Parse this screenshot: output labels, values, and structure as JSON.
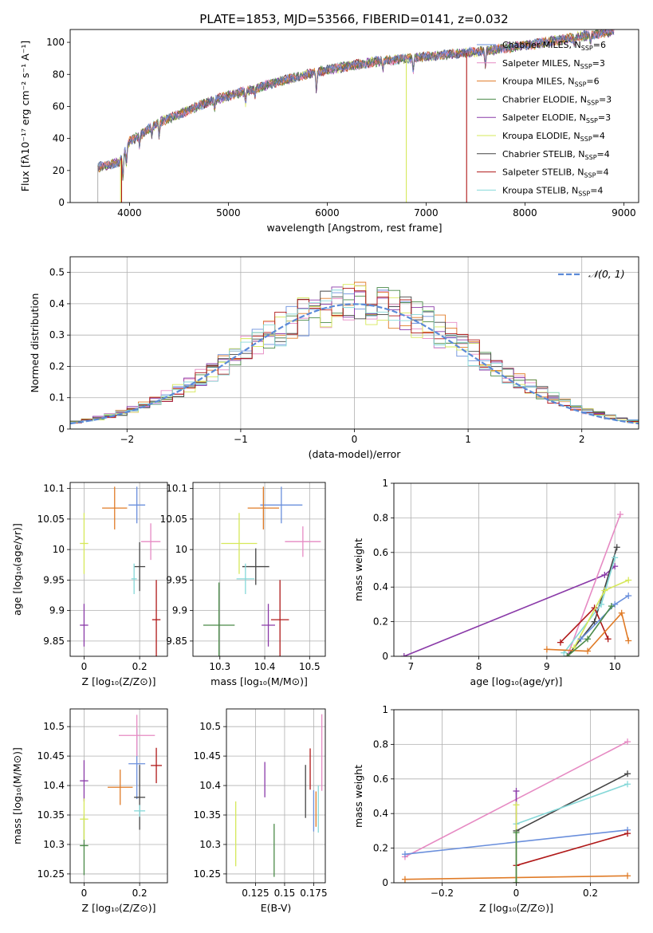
{
  "colors": {
    "chabrier_miles": "#6a8fdc",
    "salpeter_miles": "#e68ac3",
    "kroupa_miles": "#e07b27",
    "chabrier_elodie": "#4a8a48",
    "salpeter_elodie": "#8a3aa8",
    "kroupa_elodie": "#d6e85a",
    "chabrier_stelib": "#444444",
    "salpeter_stelib": "#b01818",
    "kroupa_stelib": "#86d8d8"
  },
  "chart_data": [
    {
      "type": "line",
      "id": "spectrum",
      "title": "PLATE=1853, MJD=53566, FIBERID=0141, z=0.032",
      "xlabel": "wavelength [Angstrom, rest frame]",
      "ylabel": "Flux [fλ10⁻¹⁷ erg cm⁻² s⁻¹ A⁻¹]",
      "xlim": [
        3400,
        9150
      ],
      "ylim": [
        0,
        108
      ],
      "xticks": [
        4000,
        5000,
        6000,
        7000,
        8000,
        9000
      ],
      "yticks": [
        0,
        20,
        40,
        60,
        80,
        100
      ],
      "legend_position": "right",
      "legend": [
        {
          "key": "chabrier_miles",
          "label": "Chabrier MILES, N",
          "sub": "SSP",
          "tail": "=6"
        },
        {
          "key": "salpeter_miles",
          "label": "Salpeter MILES, N",
          "sub": "SSP",
          "tail": "=3"
        },
        {
          "key": "kroupa_miles",
          "label": "Kroupa MILES, N",
          "sub": "SSP",
          "tail": "=6"
        },
        {
          "key": "chabrier_elodie",
          "label": "Chabrier ELODIE, N",
          "sub": "SSP",
          "tail": "=3"
        },
        {
          "key": "salpeter_elodie",
          "label": "Salpeter ELODIE, N",
          "sub": "SSP",
          "tail": "=3"
        },
        {
          "key": "kroupa_elodie",
          "label": "Kroupa ELODIE, N",
          "sub": "SSP",
          "tail": "=4"
        },
        {
          "key": "chabrier_stelib",
          "label": "Chabrier STELIB, N",
          "sub": "SSP",
          "tail": "=4"
        },
        {
          "key": "salpeter_stelib",
          "label": "Salpeter STELIB, N",
          "sub": "SSP",
          "tail": "=4"
        },
        {
          "key": "kroupa_stelib",
          "label": "Kroupa STELIB, N",
          "sub": "SSP",
          "tail": "=4"
        }
      ],
      "continuum": {
        "x": [
          3680,
          3900,
          4000,
          4300,
          4500,
          4800,
          5200,
          5600,
          6000,
          6500,
          7000,
          7500,
          8000,
          8500,
          8900
        ],
        "y": [
          22,
          25,
          38,
          50,
          55,
          63,
          70,
          77,
          83,
          88,
          91,
          94,
          98,
          103,
          107
        ]
      },
      "dropouts": [
        {
          "series": "kroupa_elodie",
          "x": 6800
        },
        {
          "series": "salpeter_stelib",
          "x": 7410
        },
        {
          "series": "salpeter_stelib",
          "x": 3920
        },
        {
          "series": "kroupa_elodie",
          "x": 3910
        }
      ]
    },
    {
      "type": "histogram",
      "id": "residuals",
      "xlabel": "(data-model)/error",
      "ylabel": "Normed distribution",
      "xlim": [
        -2.5,
        2.5
      ],
      "ylim": [
        0,
        0.55
      ],
      "xticks": [
        -2,
        -1,
        0,
        1,
        2
      ],
      "yticks": [
        0.0,
        0.1,
        0.2,
        0.3,
        0.4,
        0.5
      ],
      "bin_width": 0.1,
      "reference_label": "𝒩(0, 1)",
      "reference_color": "#5b8ad8",
      "legend_position": "top-right"
    },
    {
      "type": "scatter",
      "id": "age_vs_Z",
      "xlabel": "Z [log₁₀(Z/Z⊙)]",
      "ylabel": "age  [log₁₀(age/yr)]",
      "xlim": [
        -0.05,
        0.3
      ],
      "ylim": [
        9.825,
        10.11
      ],
      "xticks": [
        0.0,
        0.2
      ],
      "yticks": [
        9.85,
        9.9,
        9.95,
        10.0,
        10.05,
        10.1
      ],
      "points": [
        {
          "key": "chabrier_miles",
          "x": 0.19,
          "y": 10.073,
          "xerr": 0.03,
          "yerr": 0.03
        },
        {
          "key": "salpeter_miles",
          "x": 0.24,
          "y": 10.013,
          "xerr": 0.035,
          "yerr": 0.03
        },
        {
          "key": "kroupa_miles",
          "x": 0.11,
          "y": 10.068,
          "xerr": 0.045,
          "yerr": 0.035
        },
        {
          "key": "chabrier_elodie",
          "x": -0.005,
          "y": 9.876,
          "xerr": 0.0,
          "yerr": 0.0
        },
        {
          "key": "salpeter_elodie",
          "x": 0.0,
          "y": 9.876,
          "xerr": 0.015,
          "yerr": 0.035
        },
        {
          "key": "kroupa_elodie",
          "x": 0.0,
          "y": 10.01,
          "xerr": 0.015,
          "yerr": 0.05
        },
        {
          "key": "chabrier_stelib",
          "x": 0.2,
          "y": 9.972,
          "xerr": 0.02,
          "yerr": 0.04
        },
        {
          "key": "salpeter_stelib",
          "x": 0.26,
          "y": 9.885,
          "xerr": 0.015,
          "yerr": 0.065
        },
        {
          "key": "kroupa_stelib",
          "x": 0.18,
          "y": 9.952,
          "xerr": 0.01,
          "yerr": 0.025
        }
      ]
    },
    {
      "type": "scatter",
      "id": "age_vs_mass",
      "xlabel": "mass [log₁₀(M/M⊙)]",
      "ylabel": "",
      "xlim": [
        10.24,
        10.535
      ],
      "ylim": [
        9.825,
        10.11
      ],
      "xticks": [
        10.3,
        10.4,
        10.5
      ],
      "yticks": [
        9.85,
        9.9,
        9.95,
        10.0,
        10.05,
        10.1
      ],
      "points": [
        {
          "key": "chabrier_miles",
          "x": 10.437,
          "y": 10.073,
          "xerr": 0.047,
          "yerr": 0.03
        },
        {
          "key": "salpeter_miles",
          "x": 10.485,
          "y": 10.013,
          "xerr": 0.04,
          "yerr": 0.025
        },
        {
          "key": "kroupa_miles",
          "x": 10.397,
          "y": 10.068,
          "xerr": 0.035,
          "yerr": 0.035
        },
        {
          "key": "chabrier_elodie",
          "x": 10.298,
          "y": 9.876,
          "xerr": 0.035,
          "yerr": 0.07
        },
        {
          "key": "salpeter_elodie",
          "x": 10.408,
          "y": 9.876,
          "xerr": 0.015,
          "yerr": 0.035
        },
        {
          "key": "kroupa_elodie",
          "x": 10.343,
          "y": 10.01,
          "xerr": 0.04,
          "yerr": 0.05
        },
        {
          "key": "chabrier_stelib",
          "x": 10.38,
          "y": 9.972,
          "xerr": 0.03,
          "yerr": 0.03
        },
        {
          "key": "salpeter_stelib",
          "x": 10.434,
          "y": 9.885,
          "xerr": 0.02,
          "yerr": 0.065
        },
        {
          "key": "kroupa_stelib",
          "x": 10.357,
          "y": 9.952,
          "xerr": 0.02,
          "yerr": 0.025
        }
      ]
    },
    {
      "type": "line",
      "id": "weight_vs_age",
      "xlabel": "age  [log₁₀(age/yr)]",
      "ylabel": "mass weight",
      "xlim": [
        6.75,
        10.35
      ],
      "ylim": [
        0,
        1.0
      ],
      "xticks": [
        7,
        8,
        9,
        10
      ],
      "yticks": [
        0.0,
        0.2,
        0.4,
        0.6,
        0.8,
        1.0
      ],
      "series": [
        {
          "key": "salpeter_elodie",
          "x": [
            6.9,
            9.85,
            10.0
          ],
          "y": [
            0.0,
            0.47,
            0.52
          ]
        },
        {
          "key": "salpeter_miles",
          "x": [
            9.3,
            10.08
          ],
          "y": [
            0.0,
            0.82
          ]
        },
        {
          "key": "chabrier_stelib",
          "x": [
            9.3,
            9.7,
            10.03
          ],
          "y": [
            0.0,
            0.2,
            0.63
          ]
        },
        {
          "key": "kroupa_stelib",
          "x": [
            9.25,
            9.8,
            10.0
          ],
          "y": [
            0.02,
            0.3,
            0.57
          ]
        },
        {
          "key": "salpeter_stelib",
          "x": [
            9.2,
            9.7,
            9.9
          ],
          "y": [
            0.08,
            0.28,
            0.1
          ]
        },
        {
          "key": "kroupa_elodie",
          "x": [
            9.4,
            9.85,
            10.2
          ],
          "y": [
            0.05,
            0.38,
            0.44
          ]
        },
        {
          "key": "chabrier_miles",
          "x": [
            9.5,
            10.0,
            10.2
          ],
          "y": [
            0.1,
            0.3,
            0.35
          ]
        },
        {
          "key": "kroupa_miles",
          "x": [
            9.0,
            9.6,
            10.1,
            10.2
          ],
          "y": [
            0.04,
            0.03,
            0.25,
            0.09
          ]
        },
        {
          "key": "chabrier_elodie",
          "x": [
            9.3,
            9.6,
            9.95
          ],
          "y": [
            0.0,
            0.1,
            0.29
          ]
        }
      ]
    },
    {
      "type": "scatter",
      "id": "mass_vs_Z",
      "xlabel": "Z [log₁₀(Z/Z⊙)]",
      "ylabel": "mass [log₁₀(M/M⊙)]",
      "xlim": [
        -0.05,
        0.3
      ],
      "ylim": [
        10.235,
        10.53
      ],
      "xticks": [
        0.0,
        0.2
      ],
      "yticks": [
        10.25,
        10.3,
        10.35,
        10.4,
        10.45,
        10.5
      ],
      "points": [
        {
          "key": "chabrier_miles",
          "x": 0.19,
          "y": 10.437,
          "xerr": 0.03,
          "yerr": 0.06
        },
        {
          "key": "salpeter_miles",
          "x": 0.19,
          "y": 10.485,
          "xerr": 0.065,
          "yerr": 0.035
        },
        {
          "key": "kroupa_miles",
          "x": 0.13,
          "y": 10.397,
          "xerr": 0.045,
          "yerr": 0.03
        },
        {
          "key": "chabrier_elodie",
          "x": 0.0,
          "y": 10.298,
          "xerr": 0.015,
          "yerr": 0.05
        },
        {
          "key": "salpeter_elodie",
          "x": 0.0,
          "y": 10.408,
          "xerr": 0.015,
          "yerr": 0.035
        },
        {
          "key": "kroupa_elodie",
          "x": 0.0,
          "y": 10.343,
          "xerr": 0.015,
          "yerr": 0.035
        },
        {
          "key": "chabrier_stelib",
          "x": 0.2,
          "y": 10.38,
          "xerr": 0.02,
          "yerr": 0.055
        },
        {
          "key": "salpeter_stelib",
          "x": 0.26,
          "y": 10.434,
          "xerr": 0.02,
          "yerr": 0.03
        },
        {
          "key": "kroupa_stelib",
          "x": 0.2,
          "y": 10.357,
          "xerr": 0.02,
          "yerr": 0.01
        }
      ]
    },
    {
      "type": "scatter",
      "id": "mass_vs_ebv",
      "xlabel": "E(B-V)",
      "ylabel": "",
      "xlim": [
        0.1,
        0.185
      ],
      "ylim": [
        10.235,
        10.53
      ],
      "xticks": [
        0.125,
        0.15,
        0.175
      ],
      "yticks": [
        10.25,
        10.3,
        10.35,
        10.4,
        10.45,
        10.5
      ],
      "points": [
        {
          "key": "chabrier_miles",
          "x": 0.175,
          "y": 10.357,
          "xerr": 0.0,
          "yerr": 0.035
        },
        {
          "key": "salpeter_miles",
          "x": 0.182,
          "y": 10.456,
          "xerr": 0.0,
          "yerr": 0.065
        },
        {
          "key": "kroupa_miles",
          "x": 0.177,
          "y": 10.36,
          "xerr": 0.0,
          "yerr": 0.03
        },
        {
          "key": "chabrier_elodie",
          "x": 0.141,
          "y": 10.29,
          "xerr": 0.0,
          "yerr": 0.045
        },
        {
          "key": "salpeter_elodie",
          "x": 0.133,
          "y": 10.41,
          "xerr": 0.0,
          "yerr": 0.03
        },
        {
          "key": "kroupa_elodie",
          "x": 0.108,
          "y": 10.318,
          "xerr": 0.0,
          "yerr": 0.055
        },
        {
          "key": "chabrier_stelib",
          "x": 0.168,
          "y": 10.39,
          "xerr": 0.0,
          "yerr": 0.045
        },
        {
          "key": "salpeter_stelib",
          "x": 0.172,
          "y": 10.428,
          "xerr": 0.0,
          "yerr": 0.035
        },
        {
          "key": "kroupa_stelib",
          "x": 0.179,
          "y": 10.36,
          "xerr": 0.0,
          "yerr": 0.04
        }
      ]
    },
    {
      "type": "line",
      "id": "weight_vs_Z",
      "xlabel": "Z [log₁₀(Z/Z⊙)]",
      "ylabel": "mass weight",
      "xlim": [
        -0.33,
        0.33
      ],
      "ylim": [
        0,
        1.0
      ],
      "xticks": [
        -0.2,
        0.0,
        0.2
      ],
      "yticks": [
        0.0,
        0.2,
        0.4,
        0.6,
        0.8,
        1.0
      ],
      "series": [
        {
          "key": "salpeter_miles",
          "x": [
            -0.3,
            0.3
          ],
          "y": [
            0.15,
            0.815
          ]
        },
        {
          "key": "chabrier_stelib",
          "x": [
            0.0,
            0.3
          ],
          "y": [
            0.3,
            0.63
          ]
        },
        {
          "key": "kroupa_stelib",
          "x": [
            0.0,
            0.3
          ],
          "y": [
            0.34,
            0.57
          ]
        },
        {
          "key": "chabrier_miles",
          "x": [
            -0.3,
            0.3
          ],
          "y": [
            0.165,
            0.305
          ]
        },
        {
          "key": "salpeter_stelib",
          "x": [
            0.0,
            0.3
          ],
          "y": [
            0.1,
            0.285
          ]
        },
        {
          "key": "kroupa_miles",
          "x": [
            -0.3,
            0.3
          ],
          "y": [
            0.02,
            0.04
          ]
        },
        {
          "key": "salpeter_elodie",
          "x": [
            0.0,
            0.0
          ],
          "y": [
            0.0,
            0.53
          ]
        },
        {
          "key": "kroupa_elodie",
          "x": [
            0.0,
            0.0
          ],
          "y": [
            0.0,
            0.45
          ]
        },
        {
          "key": "chabrier_elodie",
          "x": [
            0.0,
            0.0
          ],
          "y": [
            0.0,
            0.29
          ]
        }
      ]
    }
  ]
}
